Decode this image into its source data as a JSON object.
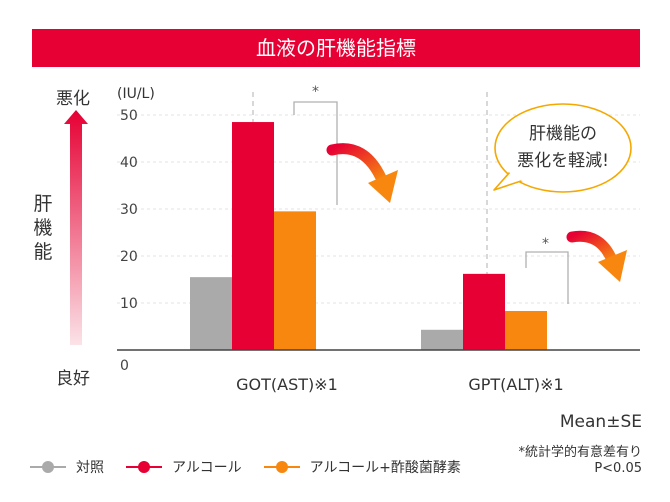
{
  "title": "血液の肝機能指標",
  "scale_labels": {
    "top": "悪化",
    "bottom": "良好",
    "side": [
      "肝",
      "機",
      "能"
    ]
  },
  "callout": {
    "line1": "肝機能の",
    "line2": "悪化を軽減!"
  },
  "notes": {
    "stat": "Mean±SE",
    "sig": "*統計学的有意差有り",
    "p": "P<0.05"
  },
  "colors": {
    "control": "#aaaaaa",
    "alcohol": "#e60033",
    "combo": "#f7870f",
    "title_bg": "#e60033"
  },
  "chart_data": {
    "type": "bar",
    "ylabel": "(IU/L)",
    "ylim": [
      0,
      50
    ],
    "yticks": [
      "0",
      "10",
      "20",
      "30",
      "40",
      "50"
    ],
    "categories": [
      "GOT(AST)※1",
      "GPT(ALT)※1"
    ],
    "series": [
      {
        "name": "対照",
        "values": [
          15.5,
          4.3
        ]
      },
      {
        "name": "アルコール",
        "values": [
          48.5,
          16.2
        ]
      },
      {
        "name": "アルコール+酢酸菌酵素",
        "values": [
          29.5,
          8.3
        ]
      }
    ],
    "significance_mark": "*"
  }
}
